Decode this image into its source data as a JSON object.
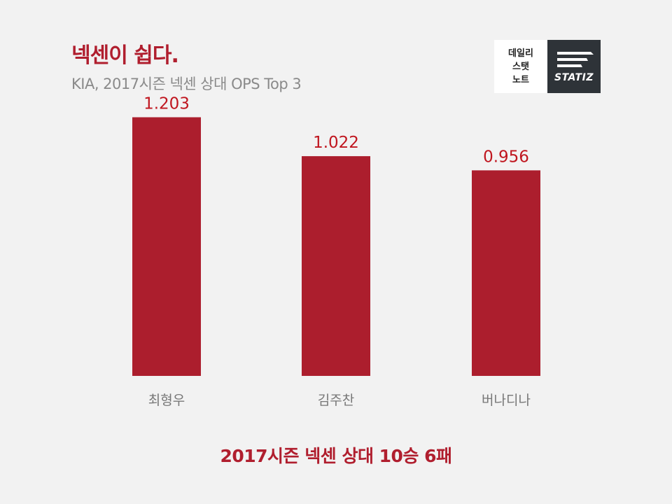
{
  "header": {
    "title": "넥센이 쉽다.",
    "subtitle": "KIA, 2017시즌 넥센 상대 OPS Top 3"
  },
  "logo": {
    "lines": [
      "데일리",
      "스탯",
      "노트"
    ],
    "brand": "STATIZ"
  },
  "colors": {
    "bar": "#ac1e2d",
    "value_label": "#c0161f",
    "category_label": "#777777"
  },
  "chart_data": {
    "type": "bar",
    "categories": [
      "최형우",
      "김주찬",
      "버나디나"
    ],
    "values": [
      1.203,
      1.022,
      0.956
    ],
    "data_labels": [
      "1.203",
      "1.022",
      "0.956"
    ],
    "ylim": [
      0,
      1.4
    ]
  },
  "footer": {
    "note": "2017시즌 넥센 상대 10승 6패"
  }
}
